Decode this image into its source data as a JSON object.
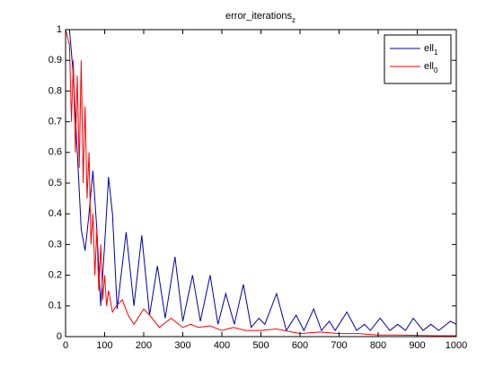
{
  "chart_data": {
    "type": "line",
    "title": "error_iterations",
    "title_sub": "z",
    "xlim": [
      0,
      1000
    ],
    "xticks": [
      0,
      100,
      200,
      300,
      400,
      500,
      600,
      700,
      800,
      900,
      1000
    ],
    "ylim": [
      0,
      1
    ],
    "yticks": [
      0,
      0.1,
      0.2,
      0.3,
      0.4,
      0.5,
      0.6,
      0.7,
      0.8,
      0.9,
      1
    ],
    "legend": "upper right",
    "series": [
      {
        "name": "ell",
        "name_sub": "1",
        "color": "#0000aa",
        "x": [
          0,
          10,
          20,
          30,
          40,
          50,
          60,
          70,
          80,
          90,
          100,
          110,
          120,
          132,
          155,
          175,
          195,
          215,
          235,
          255,
          280,
          300,
          325,
          345,
          370,
          390,
          410,
          432,
          455,
          475,
          495,
          510,
          540,
          565,
          590,
          610,
          635,
          655,
          675,
          690,
          720,
          745,
          765,
          780,
          805,
          830,
          850,
          870,
          890,
          915,
          935,
          955,
          985,
          1000
        ],
        "values": [
          1,
          1,
          0.85,
          0.6,
          0.35,
          0.28,
          0.4,
          0.54,
          0.35,
          0.1,
          0.3,
          0.52,
          0.4,
          0.09,
          0.34,
          0.1,
          0.33,
          0.07,
          0.23,
          0.06,
          0.26,
          0.05,
          0.2,
          0.05,
          0.2,
          0.04,
          0.14,
          0.04,
          0.17,
          0.03,
          0.06,
          0.04,
          0.14,
          0.02,
          0.07,
          0.02,
          0.09,
          0.02,
          0.05,
          0.02,
          0.08,
          0.02,
          0.04,
          0.02,
          0.06,
          0.02,
          0.04,
          0.02,
          0.06,
          0.02,
          0.04,
          0.02,
          0.05,
          0.04
        ]
      },
      {
        "name": "ell",
        "name_sub": "0",
        "color": "#ff0000",
        "x": [
          0,
          10,
          15,
          20,
          25,
          30,
          35,
          40,
          45,
          50,
          55,
          60,
          65,
          70,
          75,
          80,
          85,
          90,
          95,
          100,
          105,
          110,
          120,
          130,
          145,
          160,
          175,
          200,
          215,
          240,
          270,
          300,
          320,
          340,
          370,
          400,
          430,
          460,
          500,
          540,
          600,
          650,
          700,
          750,
          800,
          850,
          900,
          950,
          1000
        ],
        "values": [
          1,
          0.95,
          0.7,
          0.9,
          0.6,
          0.85,
          0.55,
          0.9,
          0.5,
          0.75,
          0.45,
          0.6,
          0.3,
          0.4,
          0.2,
          0.35,
          0.15,
          0.3,
          0.12,
          0.2,
          0.1,
          0.15,
          0.08,
          0.1,
          0.12,
          0.07,
          0.04,
          0.09,
          0.07,
          0.03,
          0.06,
          0.03,
          0.04,
          0.03,
          0.035,
          0.02,
          0.03,
          0.02,
          0.02,
          0.025,
          0.01,
          0.015,
          0.01,
          0.01,
          0.005,
          0.005,
          0.004,
          0.003,
          0.003
        ]
      }
    ]
  }
}
